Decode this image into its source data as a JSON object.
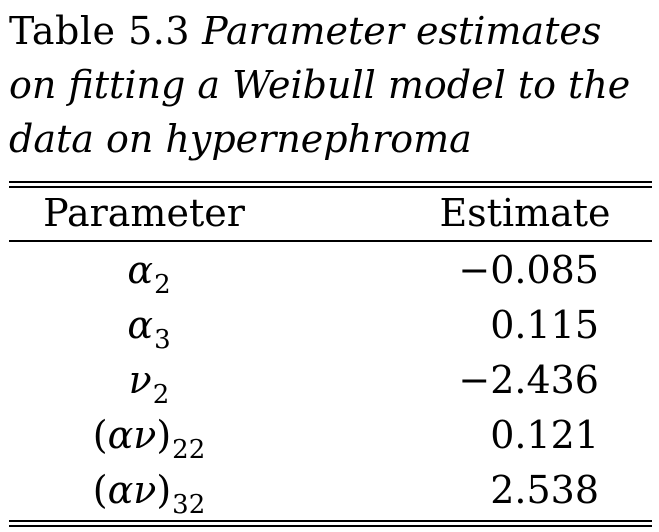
{
  "caption": {
    "label": "Table 5.3",
    "line1_italic": "Parameter estimates",
    "line2": "on fitting a Weibull model to the",
    "line3": "data on hypernephroma"
  },
  "table": {
    "headers": {
      "parameter": "Parameter",
      "estimate": "Estimate"
    },
    "rows": [
      {
        "symbol": "α",
        "subscript": "2",
        "paren": false,
        "estimate": "−0.085"
      },
      {
        "symbol": "α",
        "subscript": "3",
        "paren": false,
        "estimate": "0.115"
      },
      {
        "symbol": "ν",
        "subscript": "2",
        "paren": false,
        "estimate": "−2.436"
      },
      {
        "symbol": "αν",
        "subscript": "22",
        "paren": true,
        "estimate": "0.121"
      },
      {
        "symbol": "αν",
        "subscript": "32",
        "paren": true,
        "estimate": "2.538"
      }
    ]
  }
}
